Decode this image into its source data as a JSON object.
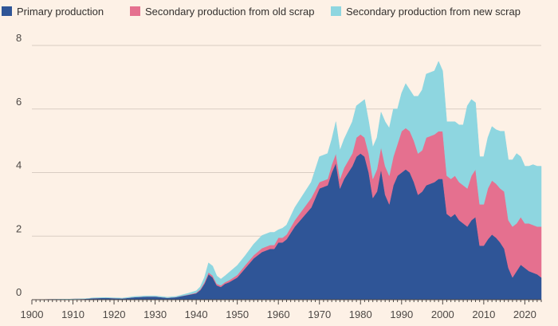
{
  "chart_data": {
    "type": "area",
    "stacked": true,
    "xlim": [
      1900,
      2024
    ],
    "ylim": [
      0,
      8
    ],
    "x_ticks": [
      1900,
      1910,
      1920,
      1930,
      1940,
      1950,
      1960,
      1970,
      1980,
      1990,
      2000,
      2010,
      2020
    ],
    "y_ticks": [
      0,
      2,
      4,
      6,
      8
    ],
    "grid": "horizontal",
    "legend_position": "top-left",
    "x": [
      1900,
      1905,
      1910,
      1913,
      1915,
      1918,
      1920,
      1922,
      1925,
      1928,
      1930,
      1933,
      1935,
      1938,
      1940,
      1941,
      1942,
      1943,
      1944,
      1945,
      1946,
      1947,
      1948,
      1950,
      1952,
      1954,
      1956,
      1958,
      1959,
      1960,
      1961,
      1962,
      1964,
      1966,
      1968,
      1970,
      1972,
      1973,
      1974,
      1975,
      1976,
      1978,
      1979,
      1980,
      1981,
      1982,
      1983,
      1984,
      1985,
      1986,
      1987,
      1988,
      1989,
      1990,
      1991,
      1992,
      1993,
      1994,
      1995,
      1996,
      1997,
      1998,
      1999,
      2000,
      2001,
      2002,
      2003,
      2004,
      2005,
      2006,
      2007,
      2008,
      2009,
      2010,
      2011,
      2012,
      2013,
      2014,
      2015,
      2016,
      2017,
      2018,
      2019,
      2020,
      2021,
      2022,
      2023,
      2024
    ],
    "series": [
      {
        "name": "Primary production",
        "color": "#2f5597",
        "values": [
          0,
          0.01,
          0.02,
          0.03,
          0.05,
          0.06,
          0.05,
          0.04,
          0.08,
          0.1,
          0.1,
          0.06,
          0.08,
          0.15,
          0.2,
          0.3,
          0.5,
          0.8,
          0.7,
          0.45,
          0.4,
          0.5,
          0.55,
          0.7,
          1.0,
          1.3,
          1.5,
          1.6,
          1.6,
          1.8,
          1.8,
          1.9,
          2.3,
          2.6,
          2.9,
          3.5,
          3.6,
          4.0,
          4.3,
          3.5,
          3.8,
          4.2,
          4.5,
          4.6,
          4.5,
          4.0,
          3.2,
          3.4,
          4.1,
          3.3,
          3.0,
          3.6,
          3.9,
          4.0,
          4.1,
          4.0,
          3.7,
          3.3,
          3.4,
          3.6,
          3.65,
          3.7,
          3.8,
          3.8,
          2.7,
          2.6,
          2.7,
          2.5,
          2.4,
          2.3,
          2.5,
          2.6,
          1.7,
          1.7,
          1.9,
          2.05,
          1.95,
          1.8,
          1.6,
          1.0,
          0.7,
          0.9,
          1.1,
          1.0,
          0.9,
          0.85,
          0.8,
          0.7
        ]
      },
      {
        "name": "Secondary production from old scrap",
        "color": "#e5708f",
        "values": [
          0,
          0,
          0,
          0,
          0,
          0,
          0,
          0,
          0,
          0,
          0,
          0,
          0,
          0.01,
          0.02,
          0.03,
          0.05,
          0.06,
          0.06,
          0.05,
          0.05,
          0.05,
          0.06,
          0.08,
          0.1,
          0.1,
          0.12,
          0.12,
          0.12,
          0.15,
          0.15,
          0.15,
          0.2,
          0.25,
          0.3,
          0.2,
          0.2,
          0.25,
          0.3,
          0.3,
          0.35,
          0.4,
          0.6,
          0.6,
          0.6,
          0.6,
          0.6,
          0.7,
          0.7,
          0.9,
          0.9,
          0.9,
          1.0,
          1.3,
          1.3,
          1.3,
          1.3,
          1.3,
          1.3,
          1.5,
          1.5,
          1.5,
          1.5,
          1.5,
          1.2,
          1.2,
          1.2,
          1.2,
          1.2,
          1.2,
          1.4,
          1.5,
          1.3,
          1.3,
          1.6,
          1.7,
          1.7,
          1.7,
          1.8,
          1.5,
          1.6,
          1.5,
          1.5,
          1.4,
          1.5,
          1.5,
          1.5,
          1.6
        ]
      },
      {
        "name": "Secondary production from new scrap",
        "color": "#8ed6e0",
        "values": [
          0,
          0,
          0,
          0,
          0.01,
          0.01,
          0.01,
          0.01,
          0.02,
          0.02,
          0.02,
          0.02,
          0.02,
          0.04,
          0.06,
          0.08,
          0.15,
          0.3,
          0.3,
          0.25,
          0.2,
          0.2,
          0.25,
          0.3,
          0.3,
          0.35,
          0.4,
          0.4,
          0.4,
          0.25,
          0.3,
          0.3,
          0.4,
          0.45,
          0.5,
          0.8,
          0.8,
          0.8,
          1.0,
          0.9,
          0.9,
          1.0,
          1.0,
          1.0,
          1.2,
          1.0,
          1.0,
          1.0,
          1.1,
          1.4,
          1.5,
          1.5,
          1.1,
          1.2,
          1.4,
          1.3,
          1.4,
          1.8,
          1.9,
          2.0,
          2.0,
          2.0,
          2.2,
          1.9,
          1.7,
          1.8,
          1.7,
          1.8,
          1.9,
          2.6,
          2.4,
          2.1,
          1.5,
          1.5,
          1.6,
          1.7,
          1.7,
          1.8,
          1.9,
          1.9,
          2.1,
          2.2,
          1.9,
          1.8,
          1.8,
          1.9,
          1.9,
          1.9
        ]
      }
    ]
  }
}
